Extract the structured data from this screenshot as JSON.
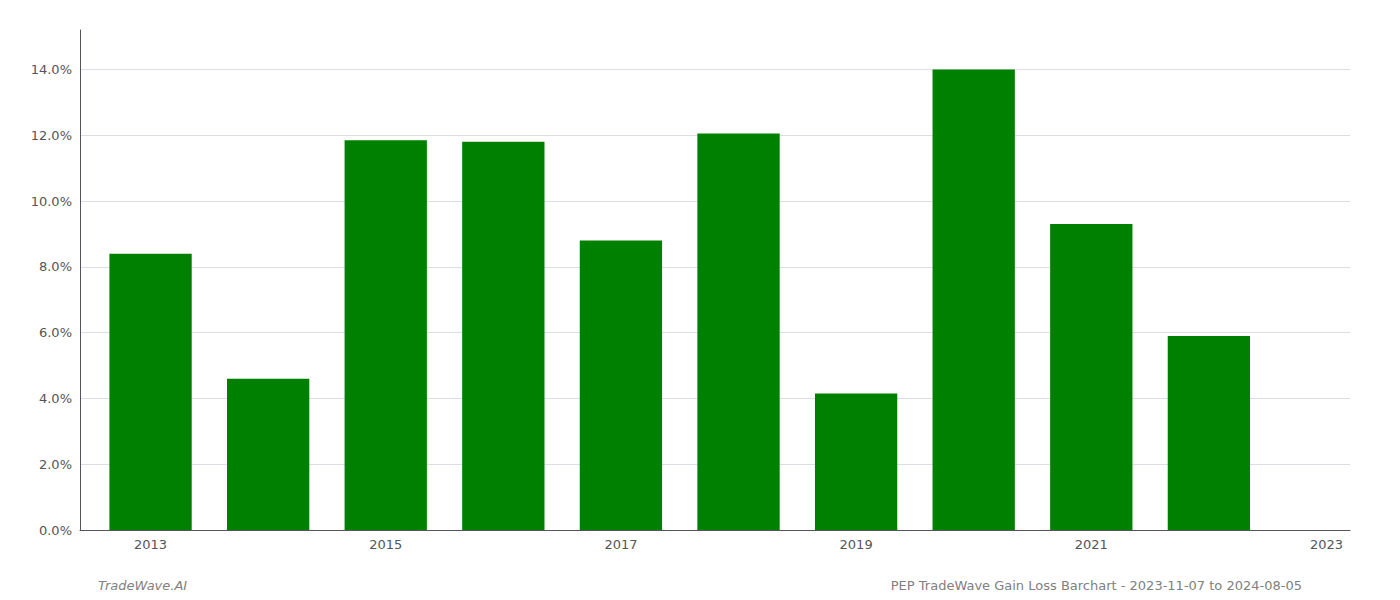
{
  "chart_data": {
    "type": "bar",
    "x": [
      2013,
      2014,
      2015,
      2016,
      2017,
      2018,
      2019,
      2020,
      2021,
      2022
    ],
    "values": [
      0.084,
      0.046,
      0.1185,
      0.118,
      0.088,
      0.1205,
      0.0415,
      0.14,
      0.093,
      0.059
    ],
    "color": "#008000",
    "xlim": [
      2012.4,
      2023.2
    ],
    "xticks": [
      2013,
      2015,
      2017,
      2019,
      2021,
      2023
    ],
    "ylim": [
      0,
      0.152
    ],
    "yticks": [
      {
        "value": 0.0,
        "label": "0.0%"
      },
      {
        "value": 0.02,
        "label": "2.0%"
      },
      {
        "value": 0.04,
        "label": "4.0%"
      },
      {
        "value": 0.06,
        "label": "6.0%"
      },
      {
        "value": 0.08,
        "label": "8.0%"
      },
      {
        "value": 0.1,
        "label": "10.0%"
      },
      {
        "value": 0.12,
        "label": "12.0%"
      },
      {
        "value": 0.14,
        "label": "14.0%"
      }
    ],
    "grid": true,
    "annotations": [
      "TradeWave.AI",
      "PEP TradeWave Gain Loss Barchart - 2023-11-07 to 2024-08-05"
    ]
  }
}
